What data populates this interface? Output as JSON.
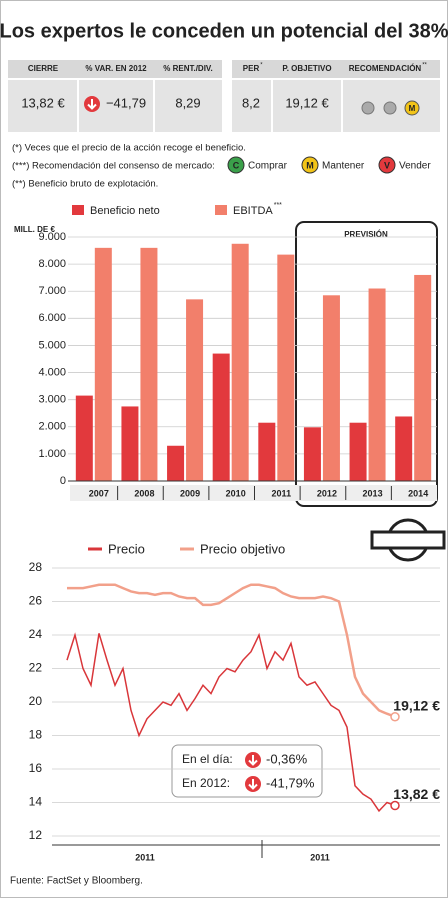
{
  "title": "Los expertos le conceden un potencial del 38%",
  "summary": [
    {
      "headers": [
        "CIERRE",
        "% VAR. EN 2012",
        "% RENT./DIV."
      ],
      "values": [
        "13,82 €",
        "−41,79",
        "8,29"
      ]
    },
    {
      "headers": [
        "PER",
        "P. OBJETIVO",
        "RECOMENDACIÓN"
      ],
      "header_sups": [
        "*",
        "**"
      ],
      "values": [
        "8,2",
        "19,12 €"
      ],
      "recommendation_icon": "M"
    }
  ],
  "notes": {
    "per": "(*) Veces que el precio de la acción recoge el beneficio.",
    "consensus": "(***) Recomendación del consenso de mercado:",
    "consensus_items": [
      {
        "icon": "C",
        "label": "Comprar"
      },
      {
        "icon": "M",
        "label": "Mantener"
      },
      {
        "icon": "V",
        "label": "Vender"
      }
    ],
    "ebitda": "(**) Beneficio bruto de explotación."
  },
  "chart_data": [
    {
      "type": "bar",
      "y_label": "MILL. DE €",
      "annotation": "PREVISIÓN",
      "categories": [
        "2007",
        "2008",
        "2009",
        "2010",
        "2011",
        "2012",
        "2013",
        "2014"
      ],
      "series": [
        {
          "name": "Beneficio neto",
          "color": "#e2393d",
          "values": [
            3150,
            2750,
            1300,
            4700,
            2150,
            1980,
            2150,
            2380
          ]
        },
        {
          "name": "EBITDA",
          "name_sup": "***",
          "color": "#f27f6b",
          "values": [
            8600,
            8600,
            6700,
            8750,
            8350,
            6850,
            7100,
            7600
          ]
        }
      ],
      "ylim": [
        0,
        9000
      ],
      "yticks": [
        0,
        {
          "value": 1000,
          "label": "1.000"
        },
        {
          "value": 2000,
          "label": "2.000"
        },
        {
          "value": 3000,
          "label": "3.000"
        },
        {
          "value": 4000,
          "label": "4.000"
        },
        {
          "value": 5000,
          "label": "5.000"
        },
        {
          "value": 6000,
          "label": "6.000"
        },
        {
          "value": 7000,
          "label": "7.000"
        },
        {
          "value": 8000,
          "label": "8.000"
        },
        {
          "value": 9000,
          "label": "9.000"
        }
      ],
      "grid": true
    },
    {
      "type": "line",
      "x_labels": [
        "2011",
        "2011"
      ],
      "series": [
        {
          "name": "Precio",
          "color": "#d9363a",
          "values": [
            22.5,
            24.0,
            22.0,
            21.0,
            24.1,
            22.5,
            21.0,
            22.0,
            19.5,
            18.0,
            19.0,
            19.5,
            20.0,
            19.8,
            20.5,
            19.5,
            20.2,
            21.0,
            20.5,
            21.5,
            22.0,
            21.8,
            22.5,
            23.0,
            24.0,
            22.0,
            23.0,
            22.5,
            23.5,
            21.5,
            21.0,
            21.2,
            20.5,
            19.8,
            19.5,
            18.5,
            15.0,
            14.5,
            14.2,
            13.5,
            14.0,
            13.82
          ]
        },
        {
          "name": "Precio objetivo",
          "color": "#f2a08a",
          "values": [
            26.8,
            26.8,
            26.8,
            26.9,
            27.0,
            27.0,
            27.0,
            26.8,
            26.6,
            26.5,
            26.5,
            26.4,
            26.5,
            26.5,
            26.3,
            26.2,
            26.2,
            25.8,
            25.8,
            25.9,
            26.2,
            26.5,
            26.8,
            27.0,
            27.0,
            26.9,
            26.8,
            26.5,
            26.3,
            26.2,
            26.2,
            26.2,
            26.3,
            26.2,
            26.0,
            24.0,
            21.5,
            20.5,
            20.0,
            19.5,
            19.3,
            19.12
          ]
        }
      ],
      "end_labels": [
        "13,82 €",
        "19,12 €"
      ],
      "box": [
        {
          "label": "En el día:",
          "value": "-0,36%"
        },
        {
          "label": "En 2012:",
          "value": "-41,79%"
        }
      ],
      "ylim": [
        12,
        28
      ],
      "yticks": [
        12,
        14,
        16,
        18,
        20,
        22,
        24,
        26,
        28
      ],
      "grid": true
    }
  ],
  "source": "Fuente: FactSet y Bloomberg."
}
